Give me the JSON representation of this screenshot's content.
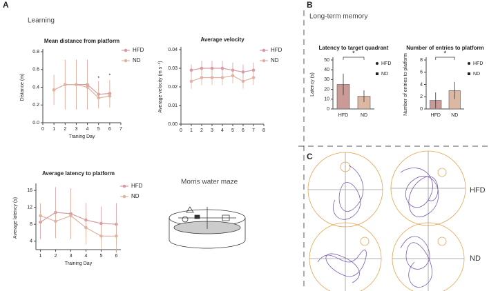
{
  "panels": {
    "a": "A",
    "b": "B",
    "c": "C",
    "learning": "Learning",
    "memory": "Long-term memory",
    "maze": "Morris water maze",
    "track_hfd": "HFD",
    "track_nd": "ND"
  },
  "chart_data": [
    {
      "type": "line",
      "title": "Mean distance from platform",
      "x_label": "Traning Day",
      "y_label": "Distance (m)",
      "xlim": [
        0,
        7
      ],
      "xticks": [
        0,
        1,
        2,
        3,
        4,
        5,
        6,
        7
      ],
      "ylim": [
        0,
        0.8
      ],
      "yticks": [
        {
          "value": 0,
          "label": "0.0"
        },
        0.2,
        0.4,
        0.6,
        0.8
      ],
      "x": [
        1,
        2,
        3,
        4,
        5,
        6
      ],
      "series": [
        {
          "name": "HFD",
          "color": "#d89aa3",
          "values": [
            0.37,
            0.43,
            0.43,
            0.43,
            0.32,
            0.33
          ],
          "errors": [
            0.17,
            0.28,
            0.28,
            0.28,
            0.15,
            0.15
          ]
        },
        {
          "name": "ND",
          "color": "#dfb39f",
          "values": [
            0.37,
            0.43,
            0.43,
            0.4,
            0.28,
            0.3
          ],
          "errors": [
            0.15,
            0.25,
            0.25,
            0.22,
            0.12,
            0.13
          ]
        }
      ],
      "annotations": [
        {
          "text": "*",
          "x": 5,
          "y": 0.5
        },
        {
          "text": "*",
          "x": 6,
          "y": 0.53
        }
      ]
    },
    {
      "type": "line",
      "title": "Average velocity",
      "y_label": "Average velocity (m s⁻¹)",
      "xlim": [
        0,
        8
      ],
      "xticks": [
        0,
        1,
        2,
        3,
        4,
        5,
        6,
        7,
        8
      ],
      "ylim": [
        0,
        0.04
      ],
      "yticks": [
        {
          "value": 0,
          "label": "0.00"
        },
        0.01,
        0.02,
        0.03,
        0.04
      ],
      "x": [
        1,
        2,
        3,
        4,
        5,
        6,
        7
      ],
      "series": [
        {
          "name": "HFD",
          "color": "#d89aa3",
          "values": [
            0.029,
            0.03,
            0.03,
            0.03,
            0.029,
            0.028,
            0.029
          ],
          "errors": [
            0.003,
            0.004,
            0.004,
            0.004,
            0.004,
            0.004,
            0.004
          ]
        },
        {
          "name": "ND",
          "color": "#dfb39f",
          "values": [
            0.023,
            0.025,
            0.025,
            0.025,
            0.026,
            0.023,
            0.025
          ],
          "errors": [
            0.004,
            0.004,
            0.004,
            0.004,
            0.004,
            0.004,
            0.004
          ]
        }
      ]
    },
    {
      "type": "line",
      "title": "Average latency to platform",
      "x_label": "Training Day",
      "y_label": "Average latency (s)",
      "xlim": [
        0.7,
        6.3
      ],
      "xticks": [
        1,
        2,
        3,
        4,
        5,
        6
      ],
      "ylim": [
        2,
        17
      ],
      "yticks": [
        4,
        8,
        12,
        16
      ],
      "x": [
        1,
        2,
        3,
        4,
        5,
        6
      ],
      "series": [
        {
          "name": "HFD",
          "color": "#d89aa3",
          "values": [
            8.5,
            10.8,
            10.5,
            9.0,
            8.2,
            8.0
          ],
          "errors": [
            4,
            6,
            6,
            4,
            4,
            5
          ]
        },
        {
          "name": "ND",
          "color": "#dfb39f",
          "values": [
            10.0,
            8.7,
            10.0,
            7.2,
            5.2,
            5.2
          ],
          "errors": [
            3,
            4,
            5,
            4,
            3,
            4
          ]
        }
      ]
    },
    {
      "type": "bar",
      "title": "Latency to target quadrant",
      "y_label": "Latency (s)",
      "significance": "*",
      "categories": [
        "HFD",
        "ND"
      ],
      "values": [
        25,
        13
      ],
      "errors": [
        11,
        6
      ],
      "colors": [
        "#c99a96",
        "#dcb7a2"
      ],
      "ylim": [
        0,
        50
      ],
      "yticks": [
        0,
        10,
        20,
        30,
        40,
        50
      ]
    },
    {
      "type": "bar",
      "title": "Number of entries to platform",
      "y_label": "Number of entries to platform",
      "significance": "*",
      "categories": [
        "HFD",
        "ND"
      ],
      "values": [
        1.4,
        3
      ],
      "errors": [
        1.3,
        1.4
      ],
      "colors": [
        "#c99a96",
        "#dcb7a2"
      ],
      "ylim": [
        0,
        8
      ],
      "yticks": [
        0,
        2,
        4,
        6,
        8
      ]
    }
  ]
}
